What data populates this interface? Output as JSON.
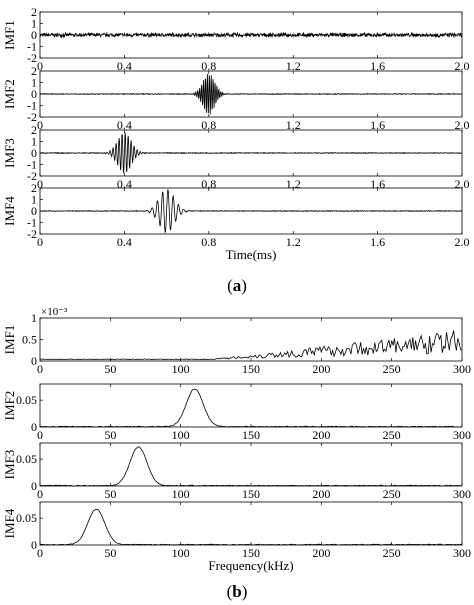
{
  "chart_data": [
    {
      "type": "line",
      "caption": "(a)",
      "xlabel": "Time(ms)",
      "xlim": [
        0,
        2.0
      ],
      "xticks": [
        "0",
        "0.4",
        "0.8",
        "1.2",
        "1.6",
        "2.0"
      ],
      "subplots": [
        {
          "ylabel": "IMF1",
          "ylim": [
            -2,
            2
          ],
          "yticks": [
            "2",
            "1",
            "0",
            "-1",
            "-2"
          ],
          "signal": {
            "kind": "noise",
            "amp": 0.15,
            "carrier_hz": 0
          }
        },
        {
          "ylabel": "IMF2",
          "ylim": [
            -2,
            2
          ],
          "yticks": [
            "2",
            "1",
            "0",
            "-1",
            "-2"
          ],
          "signal": {
            "kind": "burst",
            "center_ms": 0.8,
            "width_ms": 0.04,
            "amp": 1.8,
            "cycles_per_ms": 110
          }
        },
        {
          "ylabel": "IMF3",
          "ylim": [
            -2,
            2
          ],
          "yticks": [
            "2",
            "1",
            "0",
            "-1",
            "-2"
          ],
          "signal": {
            "kind": "burst",
            "center_ms": 0.4,
            "width_ms": 0.045,
            "amp": 1.8,
            "cycles_per_ms": 70
          }
        },
        {
          "ylabel": "IMF4",
          "ylim": [
            -2,
            2
          ],
          "yticks": [
            "2",
            "1",
            "0",
            "-1",
            "-2"
          ],
          "signal": {
            "kind": "burst",
            "center_ms": 0.6,
            "width_ms": 0.05,
            "amp": 1.9,
            "cycles_per_ms": 40
          }
        }
      ]
    },
    {
      "type": "line",
      "caption": "(b)",
      "xlabel": "Frequency(kHz)",
      "xlim": [
        0,
        300
      ],
      "xticks": [
        "0",
        "50",
        "100",
        "150",
        "200",
        "250",
        "300"
      ],
      "subplots": [
        {
          "ylabel": "IMF1",
          "ylim": [
            0,
            0.001
          ],
          "scale_label": "×10⁻³",
          "yticks": [
            "1",
            "0.5",
            "0"
          ],
          "peak": {
            "kind": "rising",
            "start_khz": 120,
            "end_value": 0.0005
          }
        },
        {
          "ylabel": "IMF2",
          "ylim": [
            0,
            0.08
          ],
          "yticks": [
            "0.05",
            "0"
          ],
          "peak": {
            "kind": "gauss",
            "center_khz": 110,
            "width_khz": 6,
            "height": 0.07
          }
        },
        {
          "ylabel": "IMF3",
          "ylim": [
            0,
            0.08
          ],
          "yticks": [
            "0.05",
            "0"
          ],
          "peak": {
            "kind": "gauss",
            "center_khz": 70,
            "width_khz": 6,
            "height": 0.072
          }
        },
        {
          "ylabel": "IMF4",
          "ylim": [
            0,
            0.08
          ],
          "yticks": [
            "0.05",
            "0"
          ],
          "peak": {
            "kind": "gauss",
            "center_khz": 40,
            "width_khz": 6,
            "height": 0.066
          }
        }
      ]
    }
  ]
}
